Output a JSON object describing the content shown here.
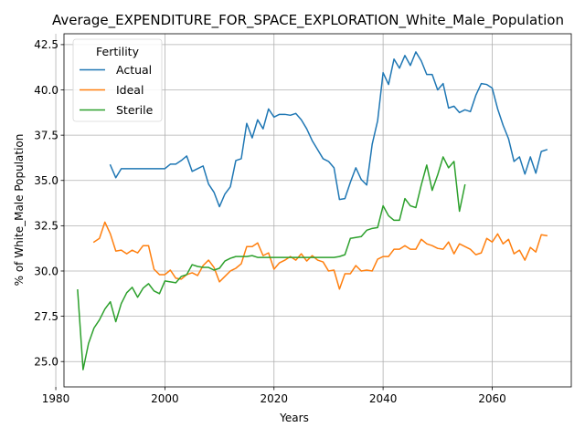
{
  "chart_data": {
    "type": "line",
    "title": "Average_EXPENDITURE_FOR_SPACE_EXPLORATION_White_Male_Population",
    "xlabel": "Years",
    "ylabel": "% of White_Male Population",
    "xlim": [
      1981.5,
      2074.5
    ],
    "ylim": [
      23.6,
      43.1
    ],
    "xticks": [
      1980,
      2000,
      2020,
      2040,
      2060
    ],
    "yticks": [
      25.0,
      27.5,
      30.0,
      32.5,
      35.0,
      37.5,
      40.0,
      42.5
    ],
    "grid": true,
    "legend": {
      "title": "Fertility",
      "position": "upper left"
    },
    "series": [
      {
        "name": "Actual",
        "color": "#1f77b4",
        "x": [
          1990,
          1991,
          1992,
          1993,
          1994,
          1995,
          1996,
          1997,
          1998,
          1999,
          2000,
          2001,
          2002,
          2003,
          2004,
          2005,
          2006,
          2007,
          2008,
          2009,
          2010,
          2011,
          2012,
          2013,
          2014,
          2015,
          2016,
          2017,
          2018,
          2019,
          2020,
          2021,
          2022,
          2023,
          2024,
          2025,
          2026,
          2027,
          2028,
          2029,
          2030,
          2031,
          2032,
          2033,
          2034,
          2035,
          2036,
          2037,
          2038,
          2039,
          2040,
          2041,
          2042,
          2043,
          2044,
          2045,
          2046,
          2047,
          2048,
          2049,
          2050,
          2051,
          2052,
          2053,
          2054,
          2055,
          2056,
          2057,
          2058,
          2059,
          2060,
          2061,
          2062,
          2063,
          2064,
          2065,
          2066,
          2067,
          2068,
          2069,
          2070
        ],
        "y": [
          35.85,
          35.15,
          35.65,
          35.65,
          35.65,
          35.65,
          35.65,
          35.65,
          35.65,
          35.65,
          35.65,
          35.9,
          35.9,
          36.1,
          36.35,
          35.5,
          35.65,
          35.8,
          34.8,
          34.35,
          33.55,
          34.25,
          34.65,
          36.1,
          36.2,
          38.15,
          37.35,
          38.35,
          37.85,
          38.95,
          38.5,
          38.65,
          38.65,
          38.6,
          38.7,
          38.35,
          37.85,
          37.2,
          36.7,
          36.2,
          36.05,
          35.7,
          33.95,
          34.0,
          34.9,
          35.7,
          35.05,
          34.75,
          37.0,
          38.3,
          40.95,
          40.3,
          41.7,
          41.2,
          41.9,
          41.35,
          42.1,
          41.6,
          40.85,
          40.85,
          40.0,
          40.35,
          39.0,
          39.1,
          38.75,
          38.9,
          38.8,
          39.7,
          40.35,
          40.3,
          40.1,
          38.95,
          38.05,
          37.3,
          36.05,
          36.3,
          35.35,
          36.3,
          35.4,
          36.6,
          36.7
        ]
      },
      {
        "name": "Ideal",
        "color": "#ff7f0e",
        "x": [
          1987,
          1988,
          1989,
          1990,
          1991,
          1992,
          1993,
          1994,
          1995,
          1996,
          1997,
          1998,
          1999,
          2000,
          2001,
          2002,
          2003,
          2004,
          2005,
          2006,
          2007,
          2008,
          2009,
          2010,
          2011,
          2012,
          2013,
          2014,
          2015,
          2016,
          2017,
          2018,
          2019,
          2020,
          2021,
          2022,
          2023,
          2024,
          2025,
          2026,
          2027,
          2028,
          2029,
          2030,
          2031,
          2032,
          2033,
          2034,
          2035,
          2036,
          2037,
          2038,
          2039,
          2040,
          2041,
          2042,
          2043,
          2044,
          2045,
          2046,
          2047,
          2048,
          2049,
          2050,
          2051,
          2052,
          2053,
          2054,
          2055,
          2056,
          2057,
          2058,
          2059,
          2060,
          2061,
          2062,
          2063,
          2064,
          2065,
          2066,
          2067,
          2068,
          2069,
          2070
        ],
        "y": [
          31.6,
          31.8,
          32.7,
          32.05,
          31.1,
          31.15,
          30.95,
          31.15,
          31.0,
          31.4,
          31.4,
          30.1,
          29.8,
          29.8,
          30.05,
          29.6,
          29.55,
          29.8,
          29.9,
          29.75,
          30.3,
          30.6,
          30.2,
          29.4,
          29.7,
          30.0,
          30.15,
          30.4,
          31.35,
          31.35,
          31.55,
          30.85,
          31.0,
          30.1,
          30.45,
          30.6,
          30.8,
          30.6,
          30.95,
          30.55,
          30.85,
          30.6,
          30.5,
          30.0,
          30.05,
          29.0,
          29.85,
          29.85,
          30.3,
          30.0,
          30.05,
          30.0,
          30.65,
          30.8,
          30.8,
          31.2,
          31.2,
          31.4,
          31.2,
          31.2,
          31.75,
          31.5,
          31.4,
          31.25,
          31.2,
          31.6,
          30.95,
          31.5,
          31.35,
          31.2,
          30.9,
          31.0,
          31.8,
          31.6,
          32.05,
          31.5,
          31.75,
          30.95,
          31.15,
          30.6,
          31.3,
          31.05,
          32.0,
          31.95
        ]
      },
      {
        "name": "Sterile",
        "color": "#2ca02c",
        "x": [
          1984,
          1985,
          1986,
          1987,
          1988,
          1989,
          1990,
          1991,
          1992,
          1993,
          1994,
          1995,
          1996,
          1997,
          1998,
          1999,
          2000,
          2001,
          2002,
          2003,
          2004,
          2005,
          2006,
          2007,
          2008,
          2009,
          2010,
          2011,
          2012,
          2013,
          2014,
          2015,
          2016,
          2017,
          2018,
          2019,
          2020,
          2021,
          2022,
          2023,
          2024,
          2025,
          2026,
          2027,
          2028,
          2029,
          2030,
          2031,
          2032,
          2033,
          2034,
          2035,
          2036,
          2037,
          2038,
          2039,
          2040,
          2041,
          2042,
          2043,
          2044,
          2045,
          2046,
          2047,
          2048,
          2049,
          2050,
          2051,
          2052,
          2053,
          2054,
          2055
        ],
        "y": [
          28.95,
          24.55,
          26.0,
          26.85,
          27.3,
          27.9,
          28.3,
          27.2,
          28.2,
          28.8,
          29.1,
          28.55,
          29.05,
          29.3,
          28.9,
          28.75,
          29.45,
          29.4,
          29.35,
          29.7,
          29.8,
          30.35,
          30.25,
          30.2,
          30.2,
          30.05,
          30.15,
          30.55,
          30.7,
          30.8,
          30.8,
          30.8,
          30.85,
          30.75,
          30.75,
          30.75,
          30.75,
          30.75,
          30.75,
          30.75,
          30.75,
          30.75,
          30.75,
          30.75,
          30.75,
          30.75,
          30.75,
          30.75,
          30.8,
          30.9,
          31.8,
          31.85,
          31.9,
          32.25,
          32.35,
          32.4,
          33.6,
          33.05,
          32.8,
          32.8,
          34.0,
          33.6,
          33.5,
          34.75,
          35.85,
          34.45,
          35.3,
          36.3,
          35.7,
          36.05,
          33.3,
          34.75
        ]
      }
    ]
  }
}
